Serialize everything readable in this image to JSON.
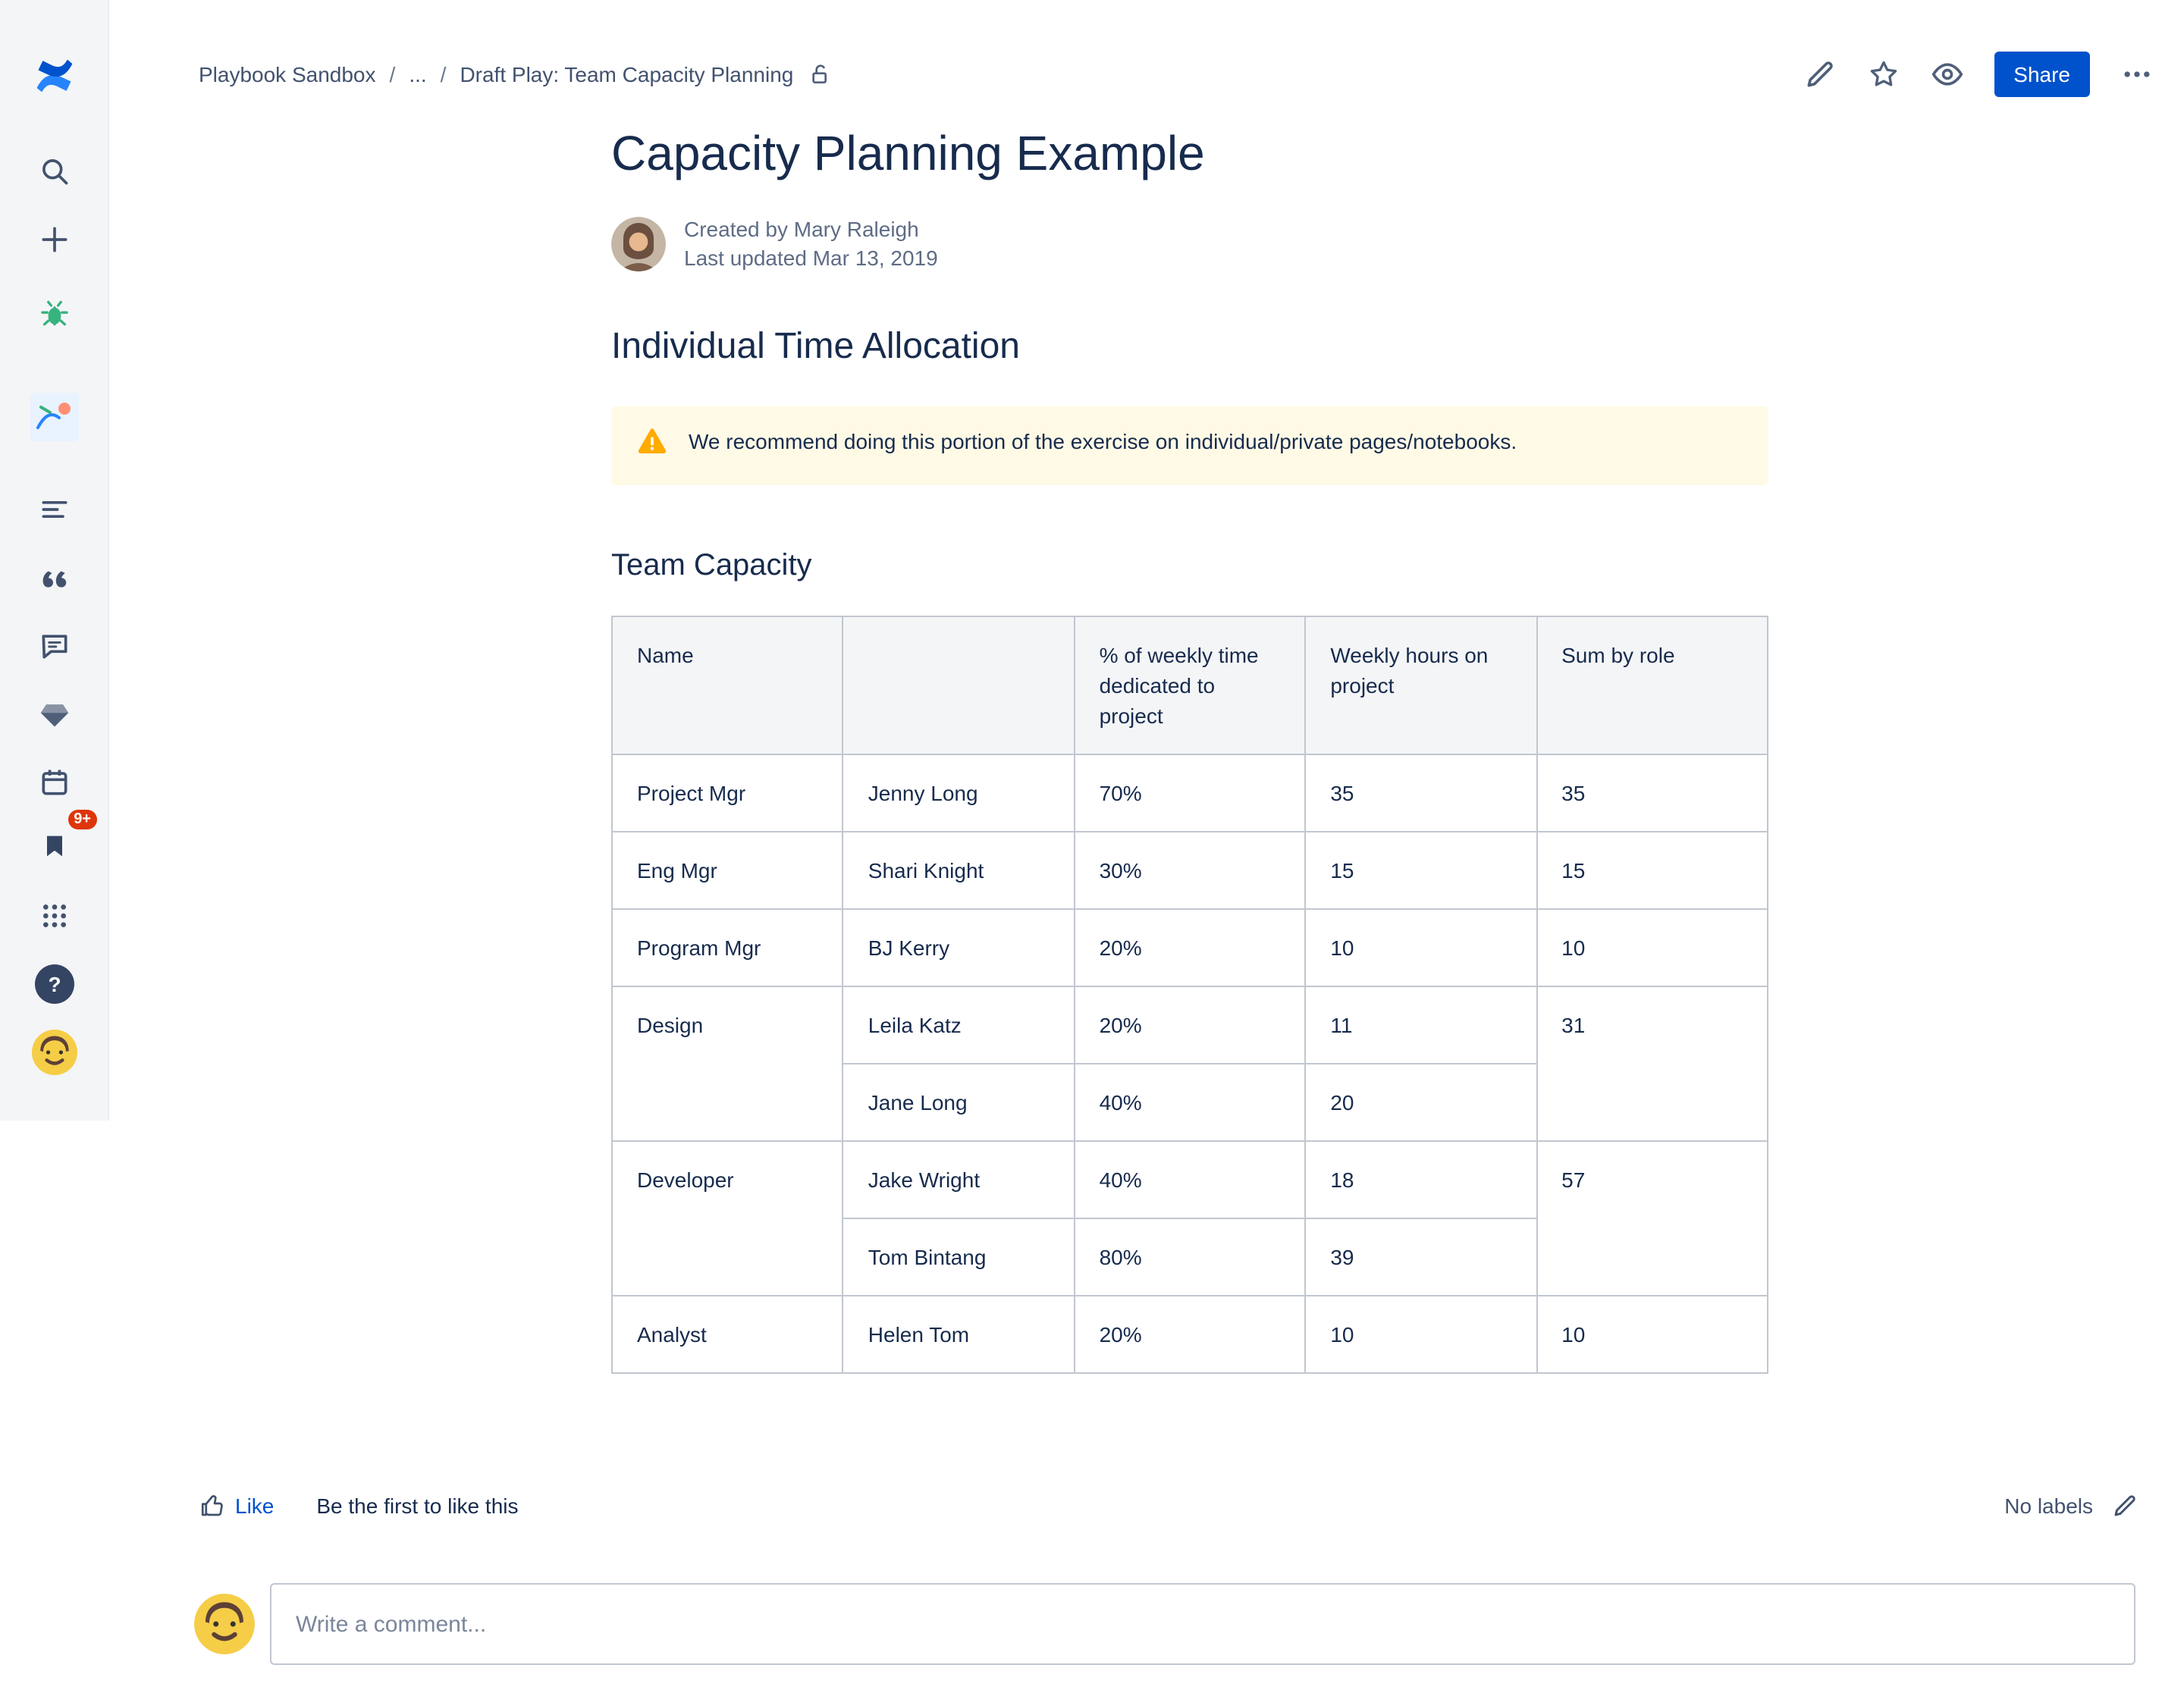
{
  "topbar": {
    "breadcrumbs": [
      "Playbook Sandbox",
      "...",
      "Draft Play: Team Capacity Planning"
    ],
    "share_label": "Share"
  },
  "sidebar": {
    "notification_badge": "9+",
    "help_glyph": "?",
    "icons": [
      "confluence-logo",
      "search",
      "create-plus",
      "bug-app",
      "space-avatar",
      "recent-list",
      "quote",
      "comments",
      "diamond-app",
      "calendar",
      "saved-flag",
      "app-switcher",
      "help",
      "profile-avatar"
    ]
  },
  "page": {
    "title": "Capacity Planning Example",
    "created_by": "Created by Mary Raleigh",
    "last_updated": "Last updated Mar 13, 2019",
    "section_individual": "Individual Time Allocation",
    "warning_text": "We recommend doing this portion of the exercise on individual/private pages/notebooks.",
    "section_team": "Team Capacity"
  },
  "table": {
    "headers": [
      "Name",
      "",
      "% of weekly time dedicated to project",
      "Weekly hours on project",
      "Sum by role"
    ],
    "groups": [
      {
        "role": "Project Mgr",
        "sum": "35",
        "members": [
          {
            "name": "Jenny Long",
            "pct": "70%",
            "hours": "35"
          }
        ]
      },
      {
        "role": "Eng Mgr",
        "sum": "15",
        "members": [
          {
            "name": "Shari Knight",
            "pct": "30%",
            "hours": "15"
          }
        ]
      },
      {
        "role": "Program Mgr",
        "sum": "10",
        "members": [
          {
            "name": "BJ Kerry",
            "pct": "20%",
            "hours": "10"
          }
        ]
      },
      {
        "role": "Design",
        "sum": "31",
        "members": [
          {
            "name": "Leila Katz",
            "pct": "20%",
            "hours": "11"
          },
          {
            "name": "Jane Long",
            "pct": "40%",
            "hours": "20"
          }
        ]
      },
      {
        "role": "Developer",
        "sum": "57",
        "members": [
          {
            "name": "Jake Wright",
            "pct": "40%",
            "hours": "18"
          },
          {
            "name": "Tom Bintang",
            "pct": "80%",
            "hours": "39"
          }
        ]
      },
      {
        "role": "Analyst",
        "sum": "10",
        "members": [
          {
            "name": "Helen Tom",
            "pct": "20%",
            "hours": "10"
          }
        ]
      }
    ]
  },
  "footer": {
    "like_label": "Like",
    "like_hint": "Be the first to like this",
    "labels_text": "No labels",
    "comment_placeholder": "Write a comment..."
  },
  "colors": {
    "accent": "#0052CC",
    "warning_bg": "#FFFAE6",
    "warning_icon": "#FFAB00",
    "notification_badge": "#DE350B"
  }
}
